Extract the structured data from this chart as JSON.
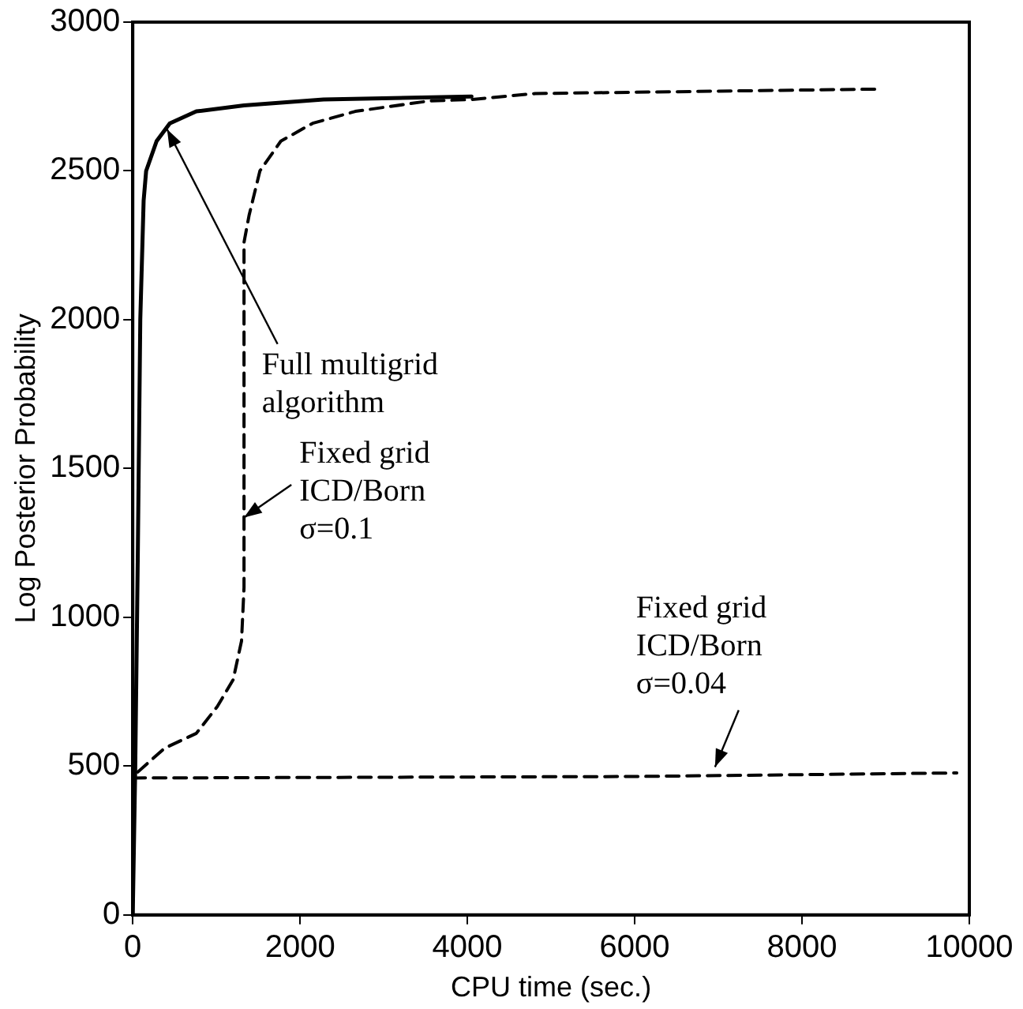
{
  "chart_data": {
    "type": "line",
    "xlabel": "CPU time (sec.)",
    "ylabel": "Log Posterior Probability",
    "xlim": [
      0,
      10000
    ],
    "xticks": [
      0,
      2000,
      4000,
      6000,
      8000,
      10000
    ],
    "ylim": [
      0,
      3000
    ],
    "yticks": [
      0,
      500,
      1000,
      1500,
      2000,
      2500,
      3000
    ],
    "grid": false,
    "legend": false,
    "marker": "none",
    "series": [
      {
        "color": "#000000",
        "line_style": "solid",
        "x": [
          0,
          30,
          60,
          90,
          130,
          160,
          285,
          443,
          760,
          1330,
          2280,
          4050
        ],
        "values": [
          0,
          500,
          1200,
          2000,
          2400,
          2500,
          2600,
          2660,
          2700,
          2720,
          2740,
          2750
        ]
      },
      {
        "color": "#000000",
        "line_style": "dashed",
        "x": [
          60,
          380,
          760,
          1010,
          1200,
          1300,
          1330,
          1330,
          1330,
          1330,
          1390,
          1520,
          1770,
          2150,
          2660,
          3540,
          4050,
          4810,
          8930
        ],
        "values": [
          480,
          560,
          610,
          700,
          790,
          920,
          1100,
          1460,
          2000,
          2260,
          2350,
          2500,
          2600,
          2660,
          2700,
          2735,
          2740,
          2760,
          2775
        ]
      },
      {
        "color": "#000000",
        "line_style": "dashed",
        "x": [
          0,
          6000,
          9850
        ],
        "values": [
          460,
          465,
          477
        ]
      }
    ],
    "annotations": [
      {
        "text": "Full multigrid\nalgorithm",
        "x": 410,
        "y": 2640
      },
      {
        "text": "Fixed grid\nICD/Born\nσ=0.1",
        "x": 1330,
        "y": 1335
      },
      {
        "text": "Fixed grid\nICD/Born\nσ=0.04",
        "x": 6960,
        "y": 497
      }
    ]
  }
}
